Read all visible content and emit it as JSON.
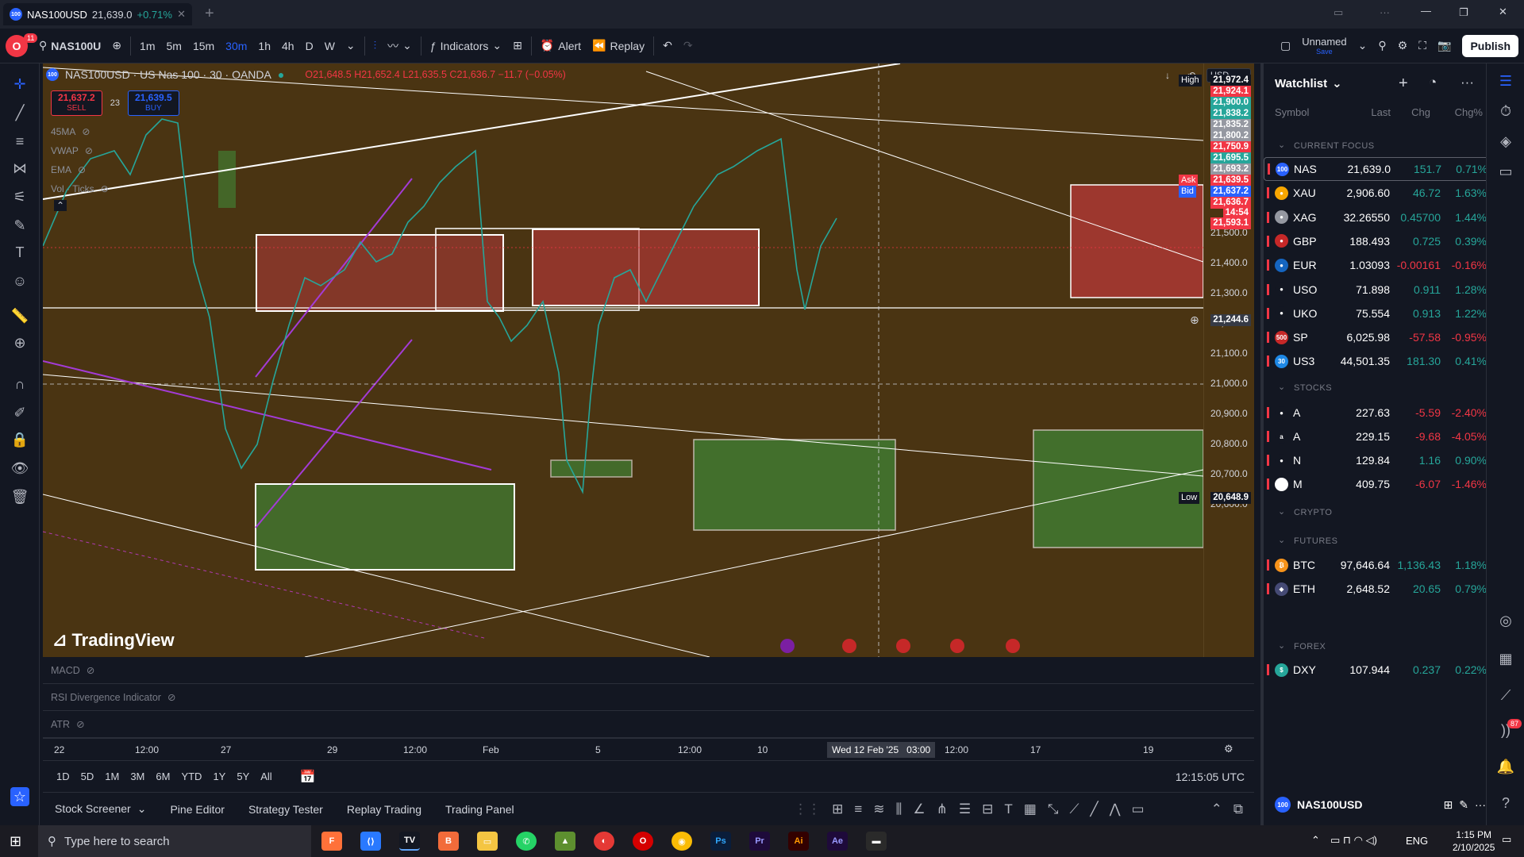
{
  "browser": {
    "tab_title": "NAS100USD",
    "tab_price": "21,639.0",
    "tab_change": "+0.71%",
    "new_tab": "+"
  },
  "toolbar": {
    "avatar_badge": "11",
    "symbol": "NAS100U",
    "intervals": [
      "1m",
      "5m",
      "15m",
      "30m",
      "1h",
      "4h",
      "D",
      "W"
    ],
    "active_interval": "30m",
    "indicators": "Indicators",
    "alert": "Alert",
    "replay": "Replay",
    "layout_name": "Unnamed",
    "layout_save": "Save",
    "publish": "Publish"
  },
  "chart": {
    "legend_title": "NAS100USD · US Nas 100 · 30 · OANDA",
    "ohlc": "O21,648.5 H21,652.4 L21,635.5 C21,636.7 −11.7 (−0.05%)",
    "sell_price": "21,637.2",
    "sell_label": "SELL",
    "spread": "23",
    "buy_price": "21,639.5",
    "buy_label": "BUY",
    "indicators": [
      "45MA",
      "VWAP",
      "EMA",
      "Vol · Ticks"
    ],
    "watermark": "TradingView",
    "currency": "USD"
  },
  "price_axis": {
    "ticks": [
      "21,500.0",
      "21,400.0",
      "21,300.0",
      "21,200.0",
      "21,100.0",
      "21,000.0",
      "20,900.0",
      "20,800.0",
      "20,700.0",
      "20,600.0"
    ],
    "high_label": "High",
    "high_value": "21,972.4",
    "labels": [
      {
        "v": "21,924.1",
        "c": "#f23645"
      },
      {
        "v": "21,900.0",
        "c": "#26a69a"
      },
      {
        "v": "21,838.2",
        "c": "#26a69a"
      },
      {
        "v": "21,835.2",
        "c": "#9598a1"
      },
      {
        "v": "21,800.2",
        "c": "#9598a1"
      },
      {
        "v": "21,750.9",
        "c": "#f23645"
      },
      {
        "v": "21,695.5",
        "c": "#26a69a"
      },
      {
        "v": "21,693.2",
        "c": "#9598a1"
      }
    ],
    "ask_label": "Ask",
    "ask_value": "21,639.5",
    "bid_label": "Bid",
    "bid_value": "21,637.2",
    "last_value": "21,636.7",
    "countdown": "14:54",
    "red_level": "21,593.1",
    "crosshair": "21,244.6",
    "low_label": "Low",
    "low_value": "20,648.9"
  },
  "panes": [
    "MACD",
    "RSI Divergence Indicator",
    "ATR"
  ],
  "time_axis": {
    "ticks": [
      "22",
      "12:00",
      "27",
      "29",
      "12:00",
      "Feb",
      "5",
      "12:00",
      "10",
      "12:00",
      "17",
      "19"
    ],
    "crosshair": "Wed 12 Feb '25",
    "crosshair_time": "03:00"
  },
  "ranges": {
    "items": [
      "1D",
      "5D",
      "1M",
      "3M",
      "6M",
      "YTD",
      "1Y",
      "5Y",
      "All"
    ],
    "clock": "12:15:05 UTC"
  },
  "bottom_tabs": [
    "Stock Screener",
    "Pine Editor",
    "Strategy Tester",
    "Replay Trading",
    "Trading Panel"
  ],
  "watchlist": {
    "title": "Watchlist",
    "cols": [
      "Symbol",
      "Last",
      "Chg",
      "Chg%"
    ],
    "sections": {
      "focus": "CURRENT FOCUS",
      "stocks": "STOCKS",
      "crypto": "CRYPTO",
      "futures": "FUTURES",
      "forex": "FOREX"
    },
    "focus": [
      {
        "sym": "NAS",
        "logo": "100",
        "lc": "#2962ff",
        "last": "21,639.0",
        "chg": "151.7",
        "pct": "0.71%",
        "up": true
      },
      {
        "sym": "XAU",
        "logo": "●",
        "lc": "#f7a600",
        "last": "2,906.60",
        "chg": "46.72",
        "pct": "1.63%",
        "up": true
      },
      {
        "sym": "XAG",
        "logo": "●",
        "lc": "#9598a1",
        "last": "32.26550",
        "chg": "0.45700",
        "pct": "1.44%",
        "up": true
      },
      {
        "sym": "GBP",
        "logo": "●",
        "lc": "#c62828",
        "last": "188.493",
        "chg": "0.725",
        "pct": "0.39%",
        "up": true
      },
      {
        "sym": "EUR",
        "logo": "●",
        "lc": "#1565c0",
        "last": "1.03093",
        "chg": "-0.00161",
        "pct": "-0.16%",
        "up": false
      },
      {
        "sym": "USO",
        "logo": "●",
        "lc": "#131722",
        "last": "71.898",
        "chg": "0.911",
        "pct": "1.28%",
        "up": true
      },
      {
        "sym": "UKO",
        "logo": "●",
        "lc": "#131722",
        "last": "75.554",
        "chg": "0.913",
        "pct": "1.22%",
        "up": true
      },
      {
        "sym": "SP",
        "logo": "500",
        "lc": "#c62828",
        "last": "6,025.98",
        "chg": "-57.58",
        "pct": "-0.95%",
        "up": false
      },
      {
        "sym": "US3",
        "logo": "30",
        "lc": "#1e88e5",
        "last": "44,501.35",
        "chg": "181.30",
        "pct": "0.41%",
        "up": true
      }
    ],
    "stocks": [
      {
        "sym": "A",
        "logo": "●",
        "lc": "#131722",
        "last": "227.63",
        "chg": "-5.59",
        "pct": "-2.40%",
        "up": false
      },
      {
        "sym": "A",
        "logo": "a",
        "lc": "#131722",
        "last": "229.15",
        "chg": "-9.68",
        "pct": "-4.05%",
        "up": false
      },
      {
        "sym": "N",
        "logo": "●",
        "lc": "#131722",
        "last": "129.84",
        "chg": "1.16",
        "pct": "0.90%",
        "up": true
      },
      {
        "sym": "M",
        "logo": "■",
        "lc": "#ffffff",
        "last": "409.75",
        "chg": "-6.07",
        "pct": "-1.46%",
        "up": false
      }
    ],
    "futures": [
      {
        "sym": "BTC",
        "logo": "₿",
        "lc": "#f7931a",
        "last": "97,646.64",
        "chg": "1,136.43",
        "pct": "1.18%",
        "up": true
      },
      {
        "sym": "ETH",
        "logo": "◆",
        "lc": "#454a75",
        "last": "2,648.52",
        "chg": "20.65",
        "pct": "0.79%",
        "up": true
      }
    ],
    "forex": [
      {
        "sym": "DXY",
        "logo": "$",
        "lc": "#26a69a",
        "last": "107.944",
        "chg": "0.237",
        "pct": "0.22%",
        "up": true
      }
    ],
    "footer_symbol": "NAS100USD",
    "footer_logo": "100"
  },
  "rightbar": {
    "badge": "87"
  },
  "taskbar": {
    "search": "Type here to search",
    "lang": "ENG",
    "time": "1:15 PM",
    "date": "2/10/2025"
  }
}
